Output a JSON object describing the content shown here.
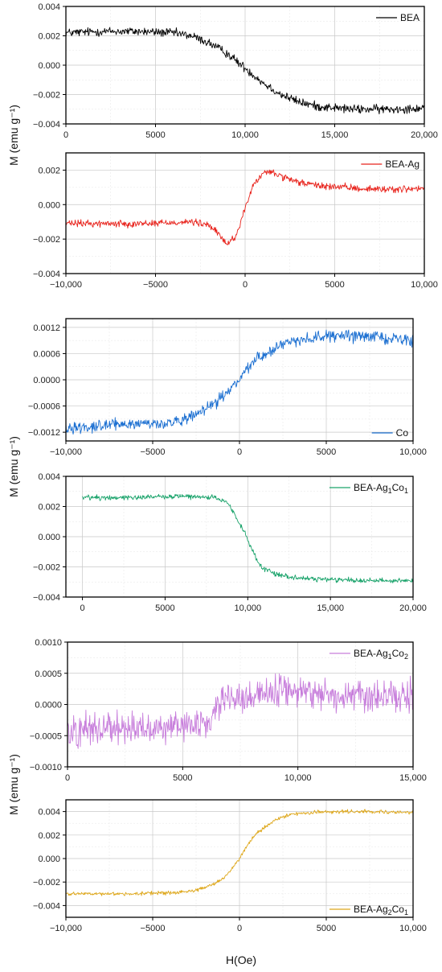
{
  "figure": {
    "ylabels": [
      "M (emu g⁻¹)",
      "M (emu g⁻¹)",
      "M (emu g⁻¹)"
    ],
    "xlabel": "H(Oe)"
  },
  "chart_data": [
    {
      "type": "line",
      "legend": "BEA",
      "legend_sub": [],
      "legend_position": "top-right",
      "color": "#000000",
      "xlim": [
        0,
        20000
      ],
      "ylim": [
        -0.004,
        0.004
      ],
      "xticks": [
        0,
        5000,
        10000,
        15000,
        20000
      ],
      "xtick_labels": [
        "0",
        "5000",
        "10,000",
        "15,000",
        "20,000"
      ],
      "yticks": [
        -0.004,
        -0.002,
        0,
        0.002,
        0.004
      ],
      "ytick_labels": [
        "−0.004",
        "−0.002",
        "0.000",
        "0.002",
        "0.004"
      ],
      "x": [
        0,
        2000,
        4000,
        6000,
        7000,
        8000,
        9000,
        10000,
        11000,
        12000,
        13000,
        14000,
        16000,
        18000,
        20000
      ],
      "y": [
        0.0022,
        0.0023,
        0.0023,
        0.0022,
        0.002,
        0.0015,
        0.0008,
        -0.0002,
        -0.0012,
        -0.002,
        -0.0025,
        -0.0028,
        -0.003,
        -0.003,
        -0.0029
      ],
      "noise": 0.0003
    },
    {
      "type": "line",
      "legend": "BEA-Ag",
      "legend_sub": [],
      "legend_position": "top-right",
      "color": "#e8231c",
      "xlim": [
        -10000,
        10000
      ],
      "ylim": [
        -0.004,
        0.003
      ],
      "xticks": [
        -10000,
        -5000,
        0,
        5000,
        10000
      ],
      "xtick_labels": [
        "−10,000",
        "−5000",
        "0",
        "5000",
        "10,000"
      ],
      "yticks": [
        -0.004,
        -0.002,
        0,
        0.002
      ],
      "ytick_labels": [
        "−0.004",
        "−0.002",
        "0.000",
        "0.002"
      ],
      "x": [
        -10000,
        -6000,
        -3000,
        -2000,
        -1500,
        -1000,
        -500,
        0,
        500,
        1000,
        1500,
        2500,
        4000,
        7000,
        10000
      ],
      "y": [
        -0.0011,
        -0.0011,
        -0.001,
        -0.0012,
        -0.0017,
        -0.0023,
        -0.0018,
        -0.0002,
        0.0012,
        0.0018,
        0.0019,
        0.0014,
        0.0011,
        0.0009,
        0.0009
      ],
      "noise": 0.0002
    },
    {
      "type": "line",
      "legend": "Co",
      "legend_sub": [],
      "legend_position": "bottom-right",
      "color": "#1b6fd1",
      "xlim": [
        -10000,
        10000
      ],
      "ylim": [
        -0.0014,
        0.0014
      ],
      "xticks": [
        -10000,
        -5000,
        0,
        5000,
        10000
      ],
      "xtick_labels": [
        "−10,000",
        "−5000",
        "0",
        "5000",
        "10,000"
      ],
      "yticks": [
        -0.0012,
        -0.0006,
        0,
        0.0006,
        0.0012
      ],
      "ytick_labels": [
        "−0.0012",
        "−0.0006",
        "0.0000",
        "0.0006",
        "0.0012"
      ],
      "x": [
        -10000,
        -6000,
        -4000,
        -3000,
        -2000,
        -1000,
        -500,
        0,
        500,
        1000,
        2000,
        3000,
        5000,
        7500,
        10000
      ],
      "y": [
        -0.0011,
        -0.001,
        -0.001,
        -0.0009,
        -0.0007,
        -0.0004,
        -0.0002,
        0.0,
        0.0003,
        0.0005,
        0.0007,
        0.0009,
        0.001,
        0.001,
        0.0009
      ],
      "noise": 0.00013
    },
    {
      "type": "line",
      "legend": "BEA-Ag",
      "legend_sub": [
        [
          "1",
          "Co"
        ],
        [
          "1",
          ""
        ]
      ],
      "legend_position": "top-right",
      "color": "#1aa36b",
      "xlim": [
        -1000,
        20000
      ],
      "ylim": [
        -0.004,
        0.004
      ],
      "xticks": [
        0,
        5000,
        10000,
        15000,
        20000
      ],
      "xtick_labels": [
        "0",
        "5000",
        "10,000",
        "15,000",
        "20,000"
      ],
      "yticks": [
        -0.004,
        -0.002,
        0,
        0.002,
        0.004
      ],
      "ytick_labels": [
        "−0.004",
        "−0.002",
        "0.000",
        "0.002",
        "0.004"
      ],
      "x": [
        0,
        3000,
        6000,
        8000,
        8800,
        9300,
        9800,
        10300,
        10800,
        11500,
        12500,
        14000,
        17000,
        20000
      ],
      "y": [
        0.0026,
        0.0026,
        0.0027,
        0.0026,
        0.0022,
        0.0013,
        0.0003,
        -0.001,
        -0.002,
        -0.0024,
        -0.0027,
        -0.0028,
        -0.0029,
        -0.0029
      ],
      "noise": 0.00017
    },
    {
      "type": "line",
      "legend": "BEA-Ag",
      "legend_sub": [
        [
          "1",
          "Co"
        ],
        [
          "2",
          ""
        ]
      ],
      "legend_position": "top-right",
      "color": "#c77ddb",
      "xlim": [
        0,
        15000
      ],
      "ylim": [
        -0.001,
        0.001
      ],
      "xticks": [
        0,
        5000,
        10000,
        15000
      ],
      "xtick_labels": [
        "0",
        "5000",
        "10,000",
        "15,000"
      ],
      "yticks": [
        -0.001,
        -0.0005,
        0,
        0.0005,
        0.001
      ],
      "ytick_labels": [
        "−0.0010",
        "−0.0005",
        "0.0000",
        "0.0005",
        "0.0010"
      ],
      "x": [
        0,
        2000,
        4000,
        6200,
        6500,
        7500,
        9500,
        12000,
        15000
      ],
      "y": [
        -0.00042,
        -0.00035,
        -0.00038,
        -0.0003,
        3e-05,
        0.0001,
        0.00025,
        0.00012,
        0.0001
      ],
      "noise": 0.00025
    },
    {
      "type": "line",
      "legend": "BEA-Ag",
      "legend_sub": [
        [
          "2",
          "Co"
        ],
        [
          "1",
          ""
        ]
      ],
      "legend_position": "bottom-right",
      "color": "#dea71a",
      "xlim": [
        -10000,
        10000
      ],
      "ylim": [
        -0.005,
        0.005
      ],
      "xticks": [
        -10000,
        -5000,
        0,
        5000,
        10000
      ],
      "xtick_labels": [
        "−10,000",
        "−5000",
        "0",
        "5000",
        "10,000"
      ],
      "yticks": [
        -0.004,
        -0.002,
        0,
        0.002,
        0.004
      ],
      "ytick_labels": [
        "−0.004",
        "−0.002",
        "0.000",
        "0.002",
        "0.004"
      ],
      "x": [
        -10000,
        -6000,
        -4000,
        -3000,
        -2000,
        -1000,
        -500,
        0,
        500,
        1000,
        2000,
        3000,
        5000,
        7500,
        10000
      ],
      "y": [
        -0.003,
        -0.003,
        -0.0029,
        -0.0028,
        -0.0025,
        -0.0018,
        -0.001,
        0.0,
        0.0012,
        0.0022,
        0.0032,
        0.0038,
        0.004,
        0.004,
        0.0039
      ],
      "noise": 0.00015
    }
  ]
}
